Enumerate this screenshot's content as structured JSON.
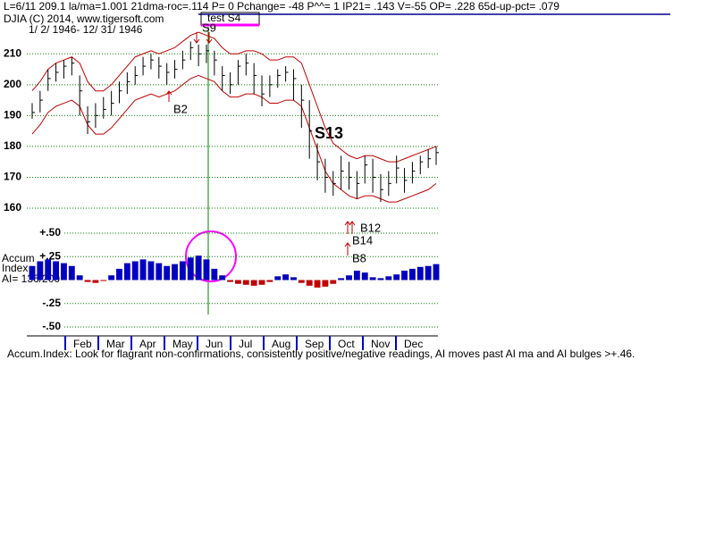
{
  "chart_data": [
    {
      "type": "ohlc",
      "header": "L=6/11   209.1  la/ma=1.001 21dma-roc=.114 P=   0 Pchange= -48 P^^= 1 IP21= .143 V=-55 OP= .228 65d-up-pct= .079",
      "title": "DJIA   (C) 2014, www.tigersoft.com",
      "study_label": "test S4",
      "subtitle": "1/ 2/ 1946- 12/ 31/ 1946",
      "annotations": [
        "S9",
        "B2",
        "S13",
        "B12",
        "B14",
        "B8"
      ],
      "high": [
        194,
        198,
        205,
        207,
        208,
        209,
        203,
        193,
        194,
        196,
        198,
        201,
        204,
        206,
        209,
        210,
        209,
        207,
        208,
        211,
        214,
        213,
        213,
        211,
        206,
        204,
        208,
        210,
        207,
        203,
        203,
        205,
        206,
        205,
        200,
        195,
        181,
        176,
        172,
        177,
        175,
        172,
        177,
        176,
        171,
        172,
        177,
        173,
        175,
        177,
        179,
        180
      ],
      "low": [
        189,
        191,
        198,
        201,
        202,
        203,
        190,
        184,
        186,
        189,
        190,
        194,
        197,
        200,
        203,
        205,
        202,
        200,
        202,
        205,
        208,
        206,
        207,
        203,
        198,
        197,
        200,
        203,
        197,
        193,
        196,
        199,
        201,
        195,
        186,
        176,
        169,
        165,
        164,
        166,
        166,
        163,
        168,
        165,
        162,
        164,
        168,
        165,
        168,
        171,
        173,
        174
      ],
      "close": [
        191,
        195,
        202,
        204,
        206,
        207,
        198,
        188,
        190,
        192,
        194,
        198,
        201,
        203,
        206,
        208,
        206,
        204,
        205,
        208,
        212,
        210,
        211,
        208,
        203,
        200,
        206,
        207,
        203,
        197,
        200,
        203,
        204,
        202,
        195,
        185,
        175,
        170,
        168,
        172,
        170,
        168,
        174,
        170,
        166,
        168,
        173,
        169,
        172,
        175,
        176,
        178
      ],
      "upper_band": [
        198,
        201,
        205,
        207,
        208,
        209,
        207,
        201,
        198,
        198,
        200,
        203,
        206,
        209,
        210,
        211,
        210,
        211,
        212,
        214,
        216,
        217,
        216,
        215,
        212,
        210,
        210,
        211,
        211,
        210,
        208,
        208,
        209,
        209,
        207,
        200,
        193,
        186,
        181,
        179,
        177,
        176,
        177,
        177,
        176,
        175,
        175,
        176,
        177,
        178,
        179,
        180
      ],
      "lower_band": [
        184,
        187,
        191,
        193,
        194,
        195,
        193,
        187,
        184,
        184,
        186,
        189,
        192,
        195,
        196,
        197,
        196,
        197,
        198,
        200,
        202,
        203,
        202,
        201,
        198,
        196,
        196,
        197,
        197,
        196,
        194,
        194,
        195,
        195,
        193,
        186,
        179,
        172,
        168,
        166,
        164,
        163,
        164,
        164,
        163,
        162,
        162,
        163,
        164,
        165,
        166,
        168
      ],
      "color": "#000000",
      "band_color": "#c00000",
      "ylim": [
        160,
        215
      ],
      "yticks": [
        160,
        170,
        180,
        190,
        200,
        210
      ],
      "grid": true
    },
    {
      "type": "bar",
      "y_label": [
        "Accum",
        "Index"
      ],
      "ai_label": "AI= 136/200",
      "values": [
        0.15,
        0.2,
        0.22,
        0.2,
        0.18,
        0.15,
        0.05,
        -0.02,
        -0.03,
        -0.01,
        0.05,
        0.12,
        0.18,
        0.2,
        0.22,
        0.2,
        0.18,
        0.15,
        0.17,
        0.2,
        0.24,
        0.26,
        0.22,
        0.12,
        0.05,
        -0.02,
        -0.04,
        -0.05,
        -0.06,
        -0.05,
        -0.02,
        0.04,
        0.06,
        0.03,
        -0.03,
        -0.06,
        -0.08,
        -0.07,
        -0.04,
        0.02,
        0.05,
        0.1,
        0.08,
        0.03,
        0.02,
        0.04,
        0.06,
        0.1,
        0.12,
        0.14,
        0.15,
        0.17
      ],
      "positive_color": "#0000c0",
      "negative_color": "#c00000",
      "ylim": [
        -0.55,
        0.55
      ],
      "yticks": [
        {
          "value": 0.5,
          "label": "+.50"
        },
        {
          "value": 0.25,
          "label": "+.25"
        },
        {
          "value": -0.25,
          "label": "-.25"
        },
        {
          "value": -0.5,
          "label": "-.50"
        }
      ],
      "grid": true,
      "month_labels": [
        "Feb",
        "Mar",
        "Apr",
        "May",
        "Jun",
        "Jul",
        "Aug",
        "Sep",
        "Oct",
        "Nov",
        "Dec"
      ],
      "caption": "Accum.Index: Look for flagrant non-confirmations, consistently positive/negative readings, AI moves past AI ma and AI bulges >+.46."
    }
  ]
}
